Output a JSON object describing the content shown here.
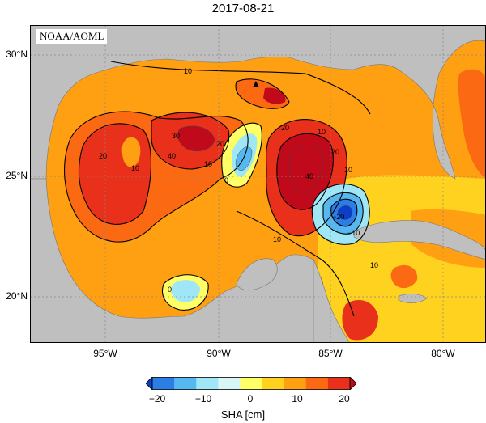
{
  "title": "2017-08-21",
  "credit": "NOAA/AOML",
  "axes": {
    "lat_labels": [
      "30°N",
      "25°N",
      "20°N"
    ],
    "lon_labels": [
      "95°W",
      "90°W",
      "85°W",
      "80°W"
    ],
    "lat_range": [
      18,
      31
    ],
    "lon_range": [
      -98.2,
      -78
    ]
  },
  "colorbar": {
    "title": "SHA [cm]",
    "ticks": [
      "−20",
      "−10",
      "0",
      "10",
      "20"
    ],
    "range": [
      -20,
      20
    ],
    "colors": [
      "#0b3fc8",
      "#2d7de6",
      "#55b8f0",
      "#9fe6f6",
      "#d8f6f4",
      "#ffff66",
      "#ffd21f",
      "#ff9f12",
      "#fb6a12",
      "#e8301a",
      "#c00a1c"
    ]
  },
  "contour_labels": [
    "10",
    "20",
    "30",
    "40",
    "10",
    "20",
    "20",
    "10",
    "10",
    "0",
    "20",
    "40",
    "10",
    "10",
    "−20",
    "−10",
    "0",
    "10"
  ],
  "marker": "▲",
  "colors": {
    "land": "#bfbfbf",
    "grid": "#888888"
  }
}
